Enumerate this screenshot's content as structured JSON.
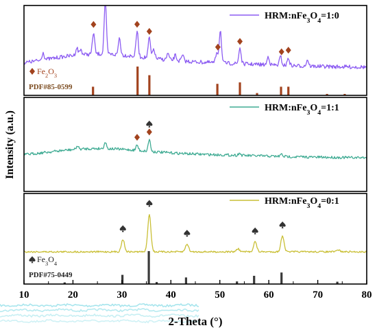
{
  "chart_data": {
    "type": "line",
    "xlabel": "2-Theta (°)",
    "ylabel": "Intensity (a.u.)",
    "xlim": [
      10,
      80
    ],
    "xticks": [
      10,
      20,
      30,
      40,
      50,
      60,
      70,
      80
    ],
    "panels": [
      {
        "series_label": "HRM:nFe3O4=1:0",
        "color": "#8c5cf2",
        "background": 0.22,
        "peaks": [
          {
            "x": 13.9,
            "h": 0.14
          },
          {
            "x": 20.8,
            "h": 0.14
          },
          {
            "x": 21.6,
            "h": 0.1
          },
          {
            "x": 24.2,
            "h": 0.4
          },
          {
            "x": 26.6,
            "h": 1.0
          },
          {
            "x": 29.5,
            "h": 0.32
          },
          {
            "x": 33.1,
            "h": 0.48
          },
          {
            "x": 35.6,
            "h": 0.38
          },
          {
            "x": 36.5,
            "h": 0.18
          },
          {
            "x": 39.4,
            "h": 0.12
          },
          {
            "x": 40.9,
            "h": 0.1
          },
          {
            "x": 42.4,
            "h": 0.1
          },
          {
            "x": 49.4,
            "h": 0.2
          },
          {
            "x": 50.1,
            "h": 0.62
          },
          {
            "x": 54.1,
            "h": 0.3
          },
          {
            "x": 59.9,
            "h": 0.16
          },
          {
            "x": 62.4,
            "h": 0.16
          },
          {
            "x": 64.0,
            "h": 0.14
          },
          {
            "x": 67.9,
            "h": 0.12
          }
        ],
        "markers": [
          {
            "x": 24.2,
            "symbol": "diamond"
          },
          {
            "x": 33.1,
            "symbol": "diamond"
          },
          {
            "x": 35.6,
            "symbol": "diamond"
          },
          {
            "x": 49.6,
            "symbol": "diamond"
          },
          {
            "x": 54.1,
            "symbol": "diamond"
          },
          {
            "x": 62.6,
            "symbol": "diamond"
          },
          {
            "x": 64.0,
            "symbol": "diamond"
          }
        ],
        "reference": {
          "symbol": "diamond",
          "name": "Fe2O3",
          "card": "PDF#85-0599",
          "color": "#a2431e",
          "sticks": [
            {
              "x": 24.1,
              "h": 0.3
            },
            {
              "x": 33.2,
              "h": 1.0
            },
            {
              "x": 35.6,
              "h": 0.7
            },
            {
              "x": 49.5,
              "h": 0.4
            },
            {
              "x": 54.1,
              "h": 0.45
            },
            {
              "x": 57.6,
              "h": 0.08
            },
            {
              "x": 62.5,
              "h": 0.3
            },
            {
              "x": 64.0,
              "h": 0.3
            },
            {
              "x": 71.9,
              "h": 0.05
            },
            {
              "x": 75.5,
              "h": 0.05
            }
          ]
        }
      },
      {
        "series_label": "HRM:nFe3O4=1:1",
        "color": "#3fab93",
        "background": 0.15,
        "peaks": [
          {
            "x": 20.9,
            "h": 0.06
          },
          {
            "x": 26.6,
            "h": 0.12
          },
          {
            "x": 33.1,
            "h": 0.1
          },
          {
            "x": 35.6,
            "h": 0.22
          },
          {
            "x": 54.0,
            "h": 0.04
          },
          {
            "x": 62.6,
            "h": 0.04
          }
        ],
        "markers": [
          {
            "x": 33.1,
            "symbol": "diamond"
          },
          {
            "x": 35.6,
            "symbol": "diamond"
          },
          {
            "x": 35.6,
            "symbol": "spade"
          }
        ]
      },
      {
        "series_label": "HRM:nFe3O4=0:1",
        "color": "#c9bf35",
        "background": 0.0,
        "peaks": [
          {
            "x": 30.2,
            "h": 0.33
          },
          {
            "x": 35.6,
            "h": 1.0
          },
          {
            "x": 43.3,
            "h": 0.21
          },
          {
            "x": 53.7,
            "h": 0.08
          },
          {
            "x": 57.2,
            "h": 0.27
          },
          {
            "x": 62.8,
            "h": 0.43
          },
          {
            "x": 74.2,
            "h": 0.05
          }
        ],
        "markers": [
          {
            "x": 30.2,
            "symbol": "spade"
          },
          {
            "x": 35.6,
            "symbol": "spade"
          },
          {
            "x": 43.3,
            "symbol": "spade"
          },
          {
            "x": 57.2,
            "symbol": "spade"
          },
          {
            "x": 62.8,
            "symbol": "spade"
          }
        ],
        "reference": {
          "symbol": "spade",
          "name": "Fe3O4",
          "card": "PDF#75-0449",
          "color": "#3a3a3a",
          "sticks": [
            {
              "x": 18.3,
              "h": 0.05
            },
            {
              "x": 30.1,
              "h": 0.28
            },
            {
              "x": 35.5,
              "h": 1.0
            },
            {
              "x": 37.1,
              "h": 0.06
            },
            {
              "x": 43.1,
              "h": 0.2
            },
            {
              "x": 53.5,
              "h": 0.08
            },
            {
              "x": 57.0,
              "h": 0.25
            },
            {
              "x": 62.6,
              "h": 0.35
            },
            {
              "x": 74.0,
              "h": 0.07
            }
          ]
        }
      }
    ]
  },
  "colors": {
    "marker_brown": "#a2431e",
    "marker_dark": "#333333",
    "axis": "#000000",
    "faded_trace": "#5fd0de"
  }
}
